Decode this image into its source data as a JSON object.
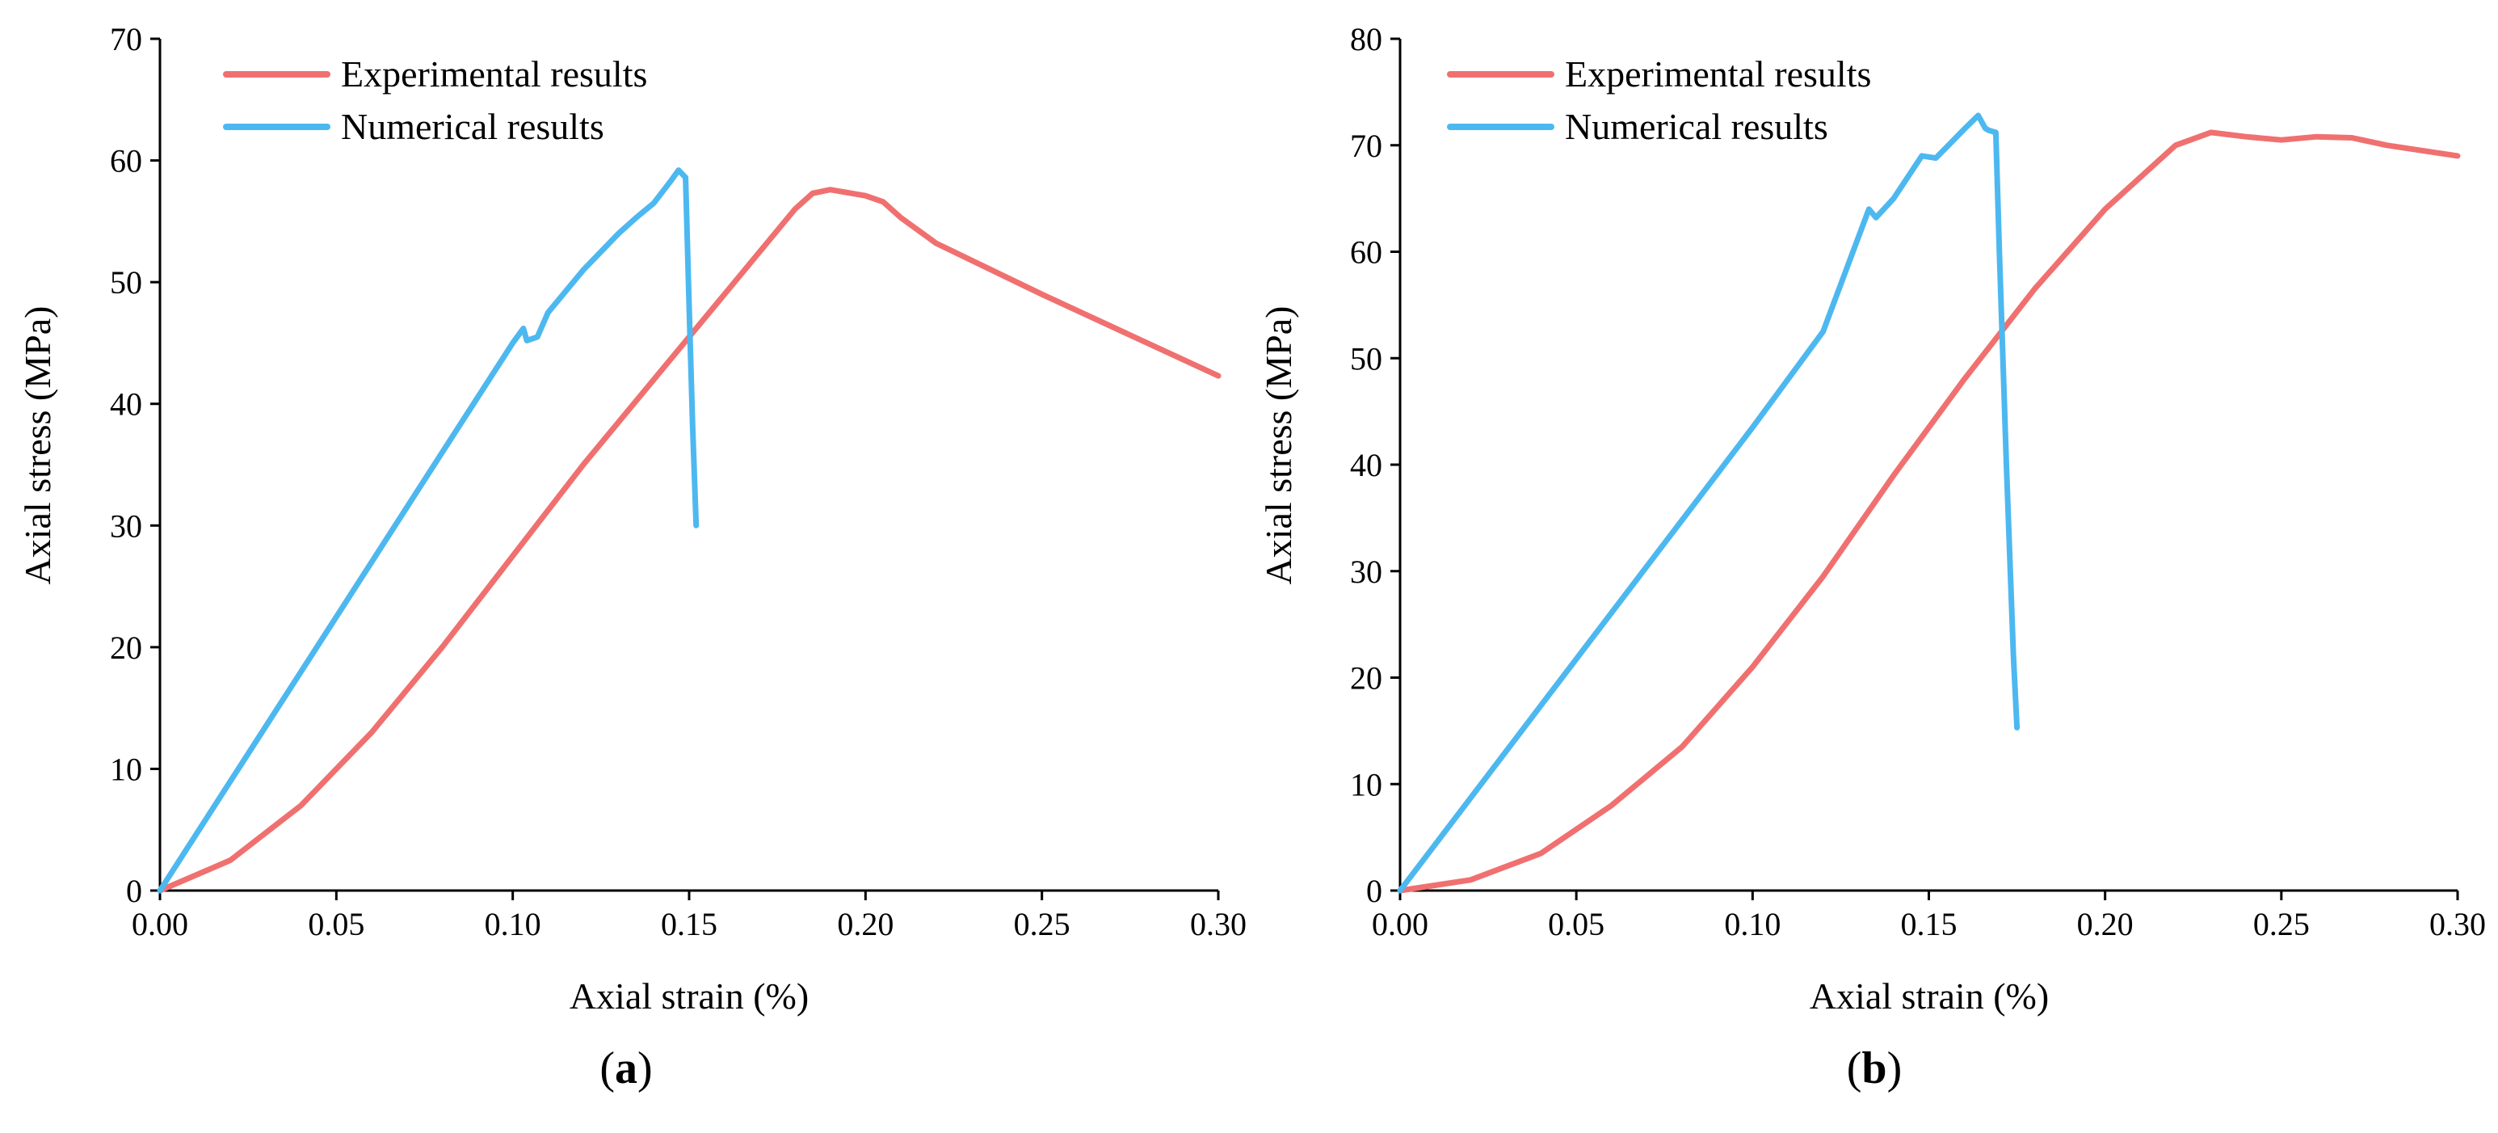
{
  "chart_data": [
    {
      "type": "line",
      "panel_label_letter": "a",
      "xlabel": "Axial strain (%)",
      "ylabel": "Axial stress (MPa)",
      "xlim": [
        0,
        0.3
      ],
      "ylim": [
        0,
        70
      ],
      "xticks": [
        0,
        0.05,
        0.1,
        0.15,
        0.2,
        0.25,
        0.3
      ],
      "xtick_labels": [
        "0.00",
        "0.05",
        "0.10",
        "0.15",
        "0.20",
        "0.25",
        "0.30"
      ],
      "yticks": [
        0,
        10,
        20,
        30,
        40,
        50,
        60,
        70
      ],
      "ytick_labels": [
        "0",
        "10",
        "20",
        "30",
        "40",
        "50",
        "60",
        "70"
      ],
      "legend_position": "top-left",
      "series": [
        {
          "name": "Experimental results",
          "color": "#f07070",
          "x": [
            0,
            0.02,
            0.04,
            0.06,
            0.08,
            0.1,
            0.12,
            0.14,
            0.16,
            0.18,
            0.185,
            0.19,
            0.2,
            0.205,
            0.21,
            0.22,
            0.25,
            0.3
          ],
          "y": [
            0,
            2.5,
            7,
            13,
            20,
            27.5,
            35,
            42,
            49,
            56,
            57.3,
            57.6,
            57.1,
            56.6,
            55.3,
            53.2,
            49,
            42.3
          ]
        },
        {
          "name": "Numerical results",
          "color": "#4db8f0",
          "x": [
            0,
            0.02,
            0.04,
            0.06,
            0.08,
            0.1,
            0.103,
            0.104,
            0.107,
            0.11,
            0.12,
            0.13,
            0.135,
            0.14,
            0.145,
            0.147,
            0.149,
            0.15,
            0.151,
            0.152
          ],
          "y": [
            0,
            9,
            18,
            27,
            36,
            45,
            46.2,
            45.2,
            45.5,
            47.5,
            51,
            54,
            55.3,
            56.5,
            58.4,
            59.2,
            58.6,
            48,
            38,
            30
          ]
        }
      ]
    },
    {
      "type": "line",
      "panel_label_letter": "b",
      "xlabel": "Axial strain (%)",
      "ylabel": "Axial stress (MPa)",
      "xlim": [
        0,
        0.3
      ],
      "ylim": [
        0,
        80
      ],
      "xticks": [
        0,
        0.05,
        0.1,
        0.15,
        0.2,
        0.25,
        0.3
      ],
      "xtick_labels": [
        "0.00",
        "0.05",
        "0.10",
        "0.15",
        "0.20",
        "0.25",
        "0.30"
      ],
      "yticks": [
        0,
        10,
        20,
        30,
        40,
        50,
        60,
        70,
        80
      ],
      "ytick_labels": [
        "0",
        "10",
        "20",
        "30",
        "40",
        "50",
        "60",
        "70",
        "80"
      ],
      "legend_position": "top-left",
      "series": [
        {
          "name": "Experimental results",
          "color": "#f07070",
          "x": [
            0,
            0.02,
            0.04,
            0.06,
            0.08,
            0.1,
            0.12,
            0.14,
            0.16,
            0.18,
            0.2,
            0.22,
            0.23,
            0.24,
            0.25,
            0.26,
            0.27,
            0.28,
            0.3
          ],
          "y": [
            0,
            1,
            3.5,
            8,
            13.5,
            21,
            29.5,
            39,
            48,
            56.5,
            64,
            70,
            71.2,
            70.8,
            70.5,
            70.8,
            70.7,
            70,
            69
          ]
        },
        {
          "name": "Numerical results",
          "color": "#4db8f0",
          "x": [
            0,
            0.02,
            0.04,
            0.06,
            0.08,
            0.1,
            0.12,
            0.133,
            0.135,
            0.14,
            0.148,
            0.152,
            0.16,
            0.164,
            0.166,
            0.167,
            0.169,
            0.17,
            0.172,
            0.174,
            0.175
          ],
          "y": [
            0,
            8.7,
            17.4,
            26.1,
            34.8,
            43.5,
            52.5,
            64,
            63.2,
            65,
            69,
            68.8,
            71.5,
            72.8,
            71.6,
            71.4,
            71.2,
            60,
            40,
            22,
            15.3
          ]
        }
      ]
    }
  ]
}
